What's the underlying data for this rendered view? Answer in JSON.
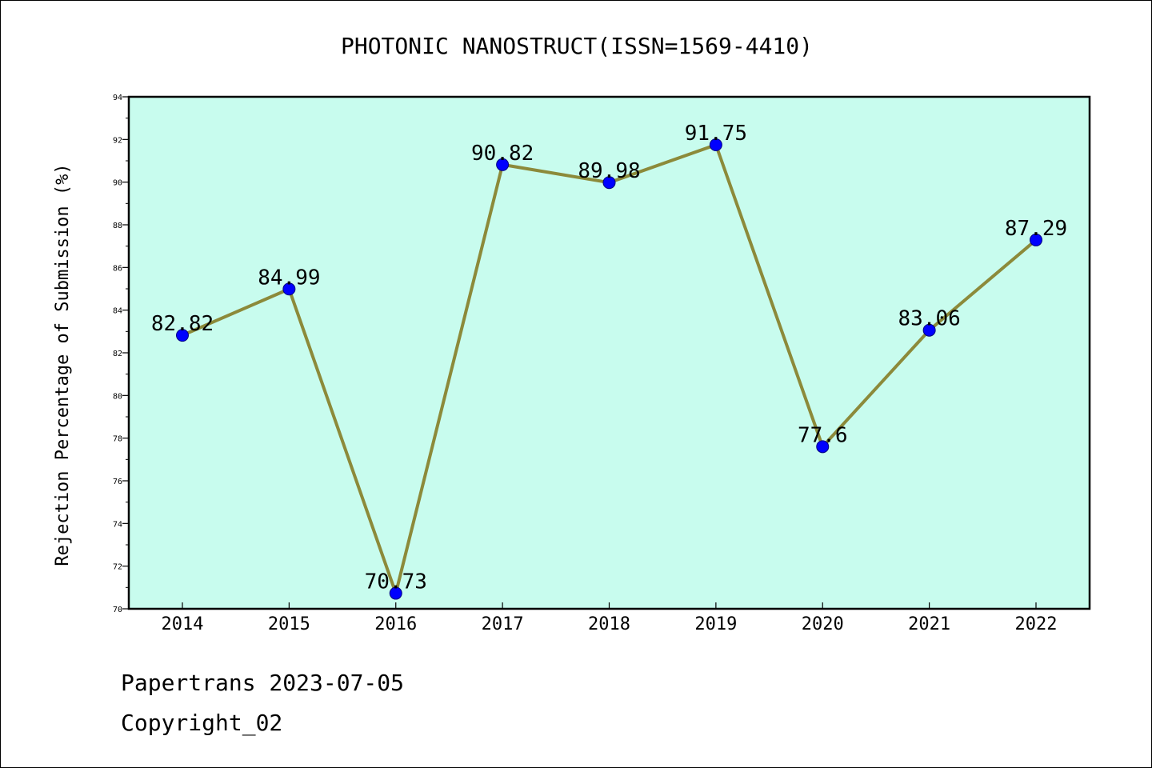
{
  "footer": {
    "line1": "Papertrans 2023-07-05",
    "line2": "Copyright_02"
  },
  "chart_data": {
    "type": "line",
    "title": "PHOTONIC NANOSTRUCT(ISSN=1569-4410)",
    "xlabel": "",
    "ylabel": "Rejection Percentage of Submission (%)",
    "categories": [
      "2014",
      "2015",
      "2016",
      "2017",
      "2018",
      "2019",
      "2020",
      "2021",
      "2022"
    ],
    "values": [
      82.82,
      84.99,
      70.73,
      90.82,
      89.98,
      91.75,
      77.6,
      83.06,
      87.29
    ],
    "data_labels": [
      "82.82",
      "84.99",
      "70.73",
      "90.82",
      "89.98",
      "91.75",
      "77.6",
      "83.06",
      "87.29"
    ],
    "ylim": [
      70,
      94
    ],
    "yticks": [
      70,
      72,
      74,
      76,
      78,
      80,
      82,
      84,
      86,
      88,
      90,
      92,
      94
    ],
    "grid": false,
    "legend": "none",
    "colors": {
      "plot_background": "#c8fcee",
      "line": "#8c8a3a",
      "marker_fill": "#0000ff",
      "marker_edge": "#000080",
      "axes": "#000000"
    }
  }
}
